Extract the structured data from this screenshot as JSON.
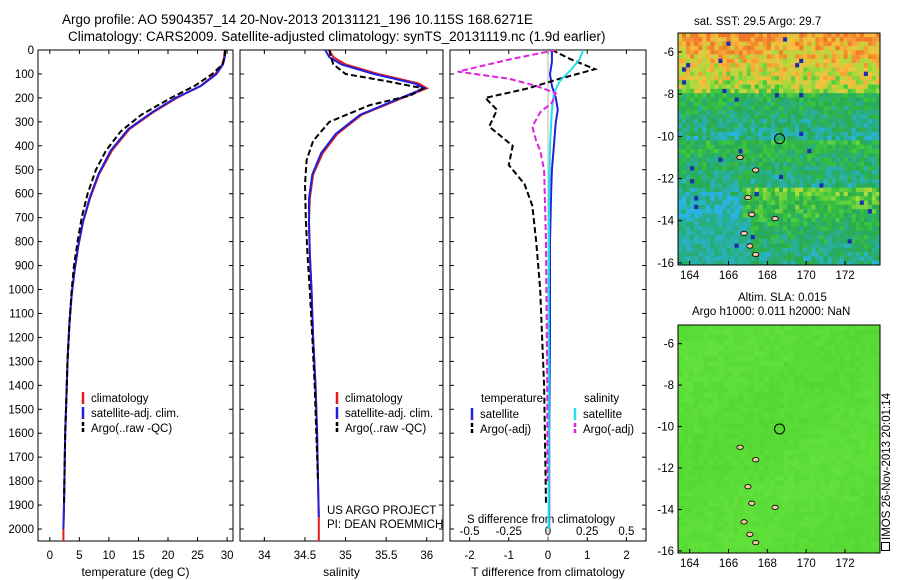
{
  "header": {
    "line1": "Argo profile: AO 5904357_14 20-Nov-2013 20131121_196 10.115S 168.6271E",
    "line2": "Climatology: CARS2009. Satellite-adjusted climatology: synTS_20131119.nc (1.9d earlier)"
  },
  "project": {
    "line1": "US ARGO PROJECT",
    "line2": "PI: DEAN ROEMMICH"
  },
  "footer_stamp": "IMOS 26-Nov-2013 20:01:14",
  "colors": {
    "red": "#e41a1c",
    "blue": "#1f1fdc",
    "black": "#000000",
    "cyan": "#22e0ee",
    "magenta": "#e01fe0"
  },
  "chart_data": [
    {
      "type": "line",
      "xlabel": "temperature (deg C)",
      "ylabel": "",
      "xlim": [
        -2,
        31
      ],
      "ylim": [
        2050,
        0
      ],
      "xticks": [
        0,
        5,
        10,
        15,
        20,
        25,
        30
      ],
      "yticks": [
        0,
        100,
        200,
        300,
        400,
        500,
        600,
        700,
        800,
        900,
        1000,
        1100,
        1200,
        1300,
        1400,
        1500,
        1600,
        1700,
        1800,
        1900,
        2000
      ],
      "legend": [
        "climatology",
        "satellite-adj. clim.",
        "Argo(..raw -QC)"
      ],
      "legend_position": "lower-center",
      "series": [
        {
          "name": "climatology",
          "color": "red",
          "dash": "",
          "x": [
            29.6,
            29.5,
            29.2,
            28,
            25.5,
            21.5,
            17.5,
            13.5,
            10.5,
            8.3,
            6.8,
            5.6,
            4.8,
            4.2,
            3.7,
            3.3,
            3.0,
            2.8,
            2.6,
            2.5,
            2.4,
            2.3,
            2.3
          ],
          "y": [
            0,
            30,
            60,
            100,
            150,
            200,
            260,
            330,
            420,
            520,
            620,
            720,
            820,
            920,
            1020,
            1150,
            1300,
            1450,
            1600,
            1750,
            1900,
            2000,
            2050
          ]
        },
        {
          "name": "satellite-adj. clim.",
          "color": "blue",
          "dash": "",
          "x": [
            29.7,
            29.6,
            29.3,
            28.2,
            25.6,
            21.3,
            17.3,
            13.3,
            10.3,
            8.2,
            6.7,
            5.6,
            4.8,
            4.2,
            3.7,
            3.3,
            3.0,
            2.8,
            2.6,
            2.5,
            2.4,
            2.3
          ],
          "y": [
            0,
            30,
            60,
            100,
            150,
            200,
            260,
            330,
            420,
            520,
            620,
            720,
            820,
            920,
            1020,
            1150,
            1300,
            1450,
            1600,
            1750,
            1900,
            2000
          ]
        },
        {
          "name": "Argo(..raw -QC)",
          "color": "black",
          "dash": "6,3",
          "x": [
            29.7,
            29.6,
            29.2,
            27.5,
            24.5,
            20.5,
            15.5,
            12.0,
            9.5,
            7.8,
            6.4,
            5.4,
            4.7,
            4.1,
            3.7,
            3.3,
            3.0,
            2.8,
            2.6,
            2.5,
            2.4
          ],
          "y": [
            0,
            30,
            60,
            100,
            150,
            200,
            270,
            340,
            420,
            500,
            600,
            700,
            800,
            900,
            1000,
            1150,
            1300,
            1450,
            1600,
            1750,
            1900
          ]
        }
      ]
    },
    {
      "type": "line",
      "xlabel": "salinity",
      "ylabel": "",
      "xlim": [
        33.7,
        36.2
      ],
      "ylim": [
        2050,
        0
      ],
      "xticks": [
        34,
        34.5,
        35,
        35.5,
        36
      ],
      "legend": [
        "climatology",
        "satellite-adj. clim.",
        "Argo(..raw -QC)"
      ],
      "legend_position": "lower-right",
      "series": [
        {
          "name": "climatology",
          "color": "red",
          "dash": "",
          "x": [
            34.8,
            34.85,
            35.0,
            35.4,
            35.9,
            36.0,
            35.7,
            35.2,
            34.9,
            34.72,
            34.6,
            34.56,
            34.55,
            34.56,
            34.58,
            34.6,
            34.63,
            34.65,
            34.66,
            34.67,
            34.67
          ],
          "y": [
            0,
            30,
            60,
            100,
            140,
            160,
            200,
            270,
            350,
            430,
            520,
            620,
            720,
            850,
            1000,
            1200,
            1400,
            1600,
            1800,
            1950,
            2050
          ]
        },
        {
          "name": "satellite-adj. clim.",
          "color": "blue",
          "dash": "",
          "x": [
            34.75,
            34.8,
            34.95,
            35.35,
            35.85,
            35.97,
            35.68,
            35.18,
            34.88,
            34.7,
            34.59,
            34.55,
            34.55,
            34.56,
            34.58,
            34.6,
            34.63,
            34.65,
            34.66,
            34.67
          ],
          "y": [
            0,
            30,
            60,
            100,
            140,
            160,
            200,
            270,
            350,
            430,
            520,
            620,
            720,
            850,
            1000,
            1200,
            1400,
            1600,
            1800,
            1950
          ]
        },
        {
          "name": "Argo(..raw -QC)",
          "color": "black",
          "dash": "6,3",
          "x": [
            34.8,
            34.82,
            34.85,
            35.0,
            35.5,
            35.95,
            35.8,
            35.3,
            34.8,
            34.6,
            34.52,
            34.5,
            34.51,
            34.53,
            34.56,
            34.59,
            34.62,
            34.64,
            34.66
          ],
          "y": [
            0,
            30,
            60,
            100,
            130,
            160,
            190,
            230,
            300,
            380,
            460,
            560,
            700,
            850,
            1000,
            1200,
            1400,
            1600,
            1800
          ]
        }
      ]
    },
    {
      "type": "line",
      "xlabel": "T difference from climatology",
      "xlabel_top": "S difference from climatology",
      "ylabel": "",
      "xlim": [
        -2.5,
        2.5
      ],
      "ylim": [
        2050,
        0
      ],
      "xticks": [
        -2,
        -1,
        0,
        1,
        2
      ],
      "xticks_top": [
        "-0.5",
        "-0.25",
        "0",
        "0.25",
        "0.5"
      ],
      "legend_groups": {
        "temperature": [
          "satellite",
          "Argo(-adj)"
        ],
        "salinity": [
          "satellite",
          "Argo(-adj)"
        ]
      },
      "legend_titles": [
        "temperature",
        "salinity"
      ],
      "legend_position": "center",
      "series": [
        {
          "name": "temperature satellite",
          "color": "blue",
          "dash": "",
          "x": [
            0.1,
            0.1,
            0.05,
            0.1,
            0.2,
            0.25,
            0.2,
            0.15,
            0.1,
            0.08,
            0.05,
            0.05,
            0.05,
            0.03,
            0.03
          ],
          "y": [
            0,
            50,
            100,
            150,
            200,
            250,
            300,
            400,
            500,
            600,
            800,
            1000,
            1200,
            1600,
            2000
          ]
        },
        {
          "name": "temperature Argo(-adj)",
          "color": "black",
          "dash": "6,3",
          "x": [
            0.1,
            0.6,
            1.2,
            0.3,
            -0.5,
            -1.6,
            -1.3,
            -1.5,
            -0.9,
            -1.0,
            -0.6,
            -0.4,
            -0.3,
            -0.2,
            -0.15,
            -0.1,
            -0.08,
            -0.05
          ],
          "y": [
            0,
            40,
            80,
            120,
            160,
            200,
            250,
            320,
            400,
            480,
            560,
            650,
            800,
            1000,
            1200,
            1400,
            1600,
            1900
          ]
        },
        {
          "name": "salinity satellite",
          "color": "cyan",
          "dash": "",
          "x": [
            0.9,
            0.8,
            0.6,
            0.3,
            0.15,
            0.1,
            0.05,
            0.03,
            0.02,
            0.02
          ],
          "y": [
            0,
            40,
            80,
            130,
            180,
            250,
            400,
            600,
            1000,
            2000
          ]
        },
        {
          "name": "salinity Argo(-adj)",
          "color": "magenta",
          "dash": "6,3",
          "x": [
            0.2,
            -1.0,
            -2.3,
            -1.0,
            -0.3,
            0.2,
            0.1,
            -0.2,
            -0.4,
            -0.3,
            -0.2,
            -0.1,
            -0.05,
            -0.02,
            -0.01
          ],
          "y": [
            0,
            40,
            90,
            120,
            150,
            180,
            220,
            260,
            320,
            380,
            420,
            500,
            800,
            1400,
            1800
          ]
        }
      ]
    },
    {
      "type": "heatmap",
      "title": "sat. SST: 29.5 Argo: 29.7",
      "xlim": [
        163.4,
        173.8
      ],
      "ylim": [
        -16.1,
        -5.1
      ],
      "xticks": [
        164,
        166,
        168,
        170,
        172
      ],
      "yticks": [
        -6,
        -8,
        -10,
        -12,
        -14,
        -16
      ],
      "marker": {
        "lon": 168.6271,
        "lat": -10.115
      }
    },
    {
      "type": "heatmap",
      "title": "Altim. SLA: 0.015",
      "subtitle": "Argo h1000: 0.011 h2000: NaN",
      "xlim": [
        163.4,
        173.8
      ],
      "ylim": [
        -16.1,
        -5.1
      ],
      "xticks": [
        164,
        166,
        168,
        170,
        172
      ],
      "yticks": [
        -6,
        -8,
        -10,
        -12,
        -14,
        -16
      ],
      "marker": {
        "lon": 168.6271,
        "lat": -10.115
      }
    }
  ]
}
